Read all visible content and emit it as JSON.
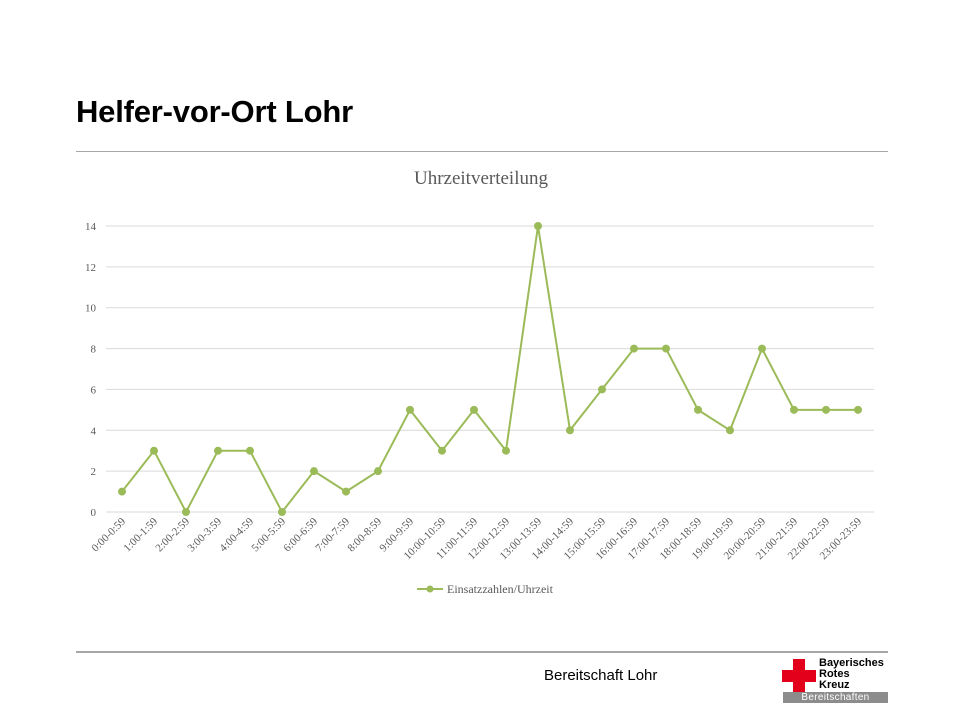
{
  "slide": {
    "title": "Helfer-vor-Ort Lohr",
    "footer": "Bereitschaft Lohr"
  },
  "logo": {
    "line1": "Bayerisches",
    "line2": "Rotes",
    "line3": "Kreuz",
    "band": "Bereitschaften",
    "cross_color": "#e2001a"
  },
  "chart_data": {
    "type": "line",
    "title": "Uhrzeitverteilung",
    "xlabel": "",
    "ylabel": "",
    "categories": [
      "0:00-0:59",
      "1:00-1:59",
      "2:00-2:59",
      "3:00-3:59",
      "4:00-4:59",
      "5:00-5:59",
      "6:00-6:59",
      "7:00-7:59",
      "8:00-8:59",
      "9:00-9:59",
      "10:00-10:59",
      "11:00-11:59",
      "12:00-12:59",
      "13:00-13:59",
      "14:00-14:59",
      "15:00-15:59",
      "16:00-16:59",
      "17:00-17:59",
      "18:00-18:59",
      "19:00-19:59",
      "20:00-20:59",
      "21:00-21:59",
      "22:00-22:59",
      "23:00-23:59"
    ],
    "series": [
      {
        "name": "Einsatzzahlen/Uhrzeit",
        "color": "#9bbb59",
        "values": [
          1,
          3,
          0,
          3,
          3,
          0,
          2,
          1,
          2,
          5,
          3,
          5,
          3,
          14,
          4,
          6,
          8,
          8,
          5,
          4,
          8,
          5,
          5,
          5
        ]
      }
    ],
    "ylim": [
      0,
      14
    ],
    "yticks": [
      0,
      2,
      4,
      6,
      8,
      10,
      12,
      14
    ],
    "grid": true,
    "legend": "bottom"
  }
}
